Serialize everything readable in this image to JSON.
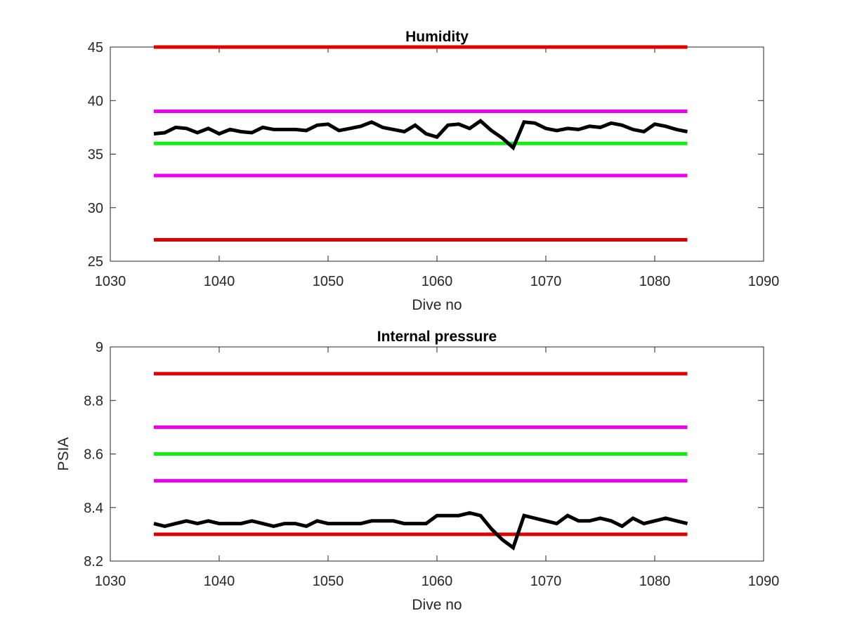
{
  "chart_data": [
    {
      "type": "line",
      "title": "Humidity",
      "xlabel": "Dive no",
      "ylabel": "",
      "xlim": [
        1030,
        1090
      ],
      "ylim": [
        25,
        45
      ],
      "xticks": [
        1030,
        1040,
        1050,
        1060,
        1070,
        1080,
        1090
      ],
      "yticks": [
        25,
        30,
        35,
        40,
        45
      ],
      "grid": false,
      "reference_lines": [
        {
          "y": 45,
          "x_range": [
            1034,
            1083
          ],
          "color": "#dd0000"
        },
        {
          "y": 39,
          "x_range": [
            1034,
            1083
          ],
          "color": "#ee00ee"
        },
        {
          "y": 36,
          "x_range": [
            1034,
            1083
          ],
          "color": "#11ee11"
        },
        {
          "y": 33,
          "x_range": [
            1034,
            1083
          ],
          "color": "#ee00ee"
        },
        {
          "y": 27,
          "x_range": [
            1034,
            1083
          ],
          "color": "#dd0000"
        }
      ],
      "series": [
        {
          "color": "#000000",
          "x": [
            1034,
            1035,
            1036,
            1037,
            1038,
            1039,
            1040,
            1041,
            1042,
            1043,
            1044,
            1045,
            1046,
            1047,
            1048,
            1049,
            1050,
            1051,
            1052,
            1053,
            1054,
            1055,
            1056,
            1057,
            1058,
            1059,
            1060,
            1061,
            1062,
            1063,
            1064,
            1065,
            1066,
            1067,
            1068,
            1069,
            1070,
            1071,
            1072,
            1073,
            1074,
            1075,
            1076,
            1077,
            1078,
            1079,
            1080,
            1081,
            1082,
            1083
          ],
          "y": [
            36.9,
            37.0,
            37.5,
            37.4,
            37.0,
            37.4,
            36.9,
            37.3,
            37.1,
            37.0,
            37.5,
            37.3,
            37.3,
            37.3,
            37.2,
            37.7,
            37.8,
            37.2,
            37.4,
            37.6,
            38.0,
            37.5,
            37.3,
            37.1,
            37.7,
            36.9,
            36.6,
            37.7,
            37.8,
            37.4,
            38.1,
            37.2,
            36.5,
            35.6,
            38.0,
            37.9,
            37.4,
            37.2,
            37.4,
            37.3,
            37.6,
            37.5,
            37.9,
            37.7,
            37.3,
            37.1,
            37.8,
            37.6,
            37.3,
            37.1
          ]
        }
      ]
    },
    {
      "type": "line",
      "title": "Internal pressure",
      "xlabel": "Dive no",
      "ylabel": "PSIA",
      "xlim": [
        1030,
        1090
      ],
      "ylim": [
        8.2,
        9
      ],
      "xticks": [
        1030,
        1040,
        1050,
        1060,
        1070,
        1080,
        1090
      ],
      "yticks": [
        "8.2",
        "8.4",
        "8.6",
        "8.8",
        "9"
      ],
      "grid": false,
      "reference_lines": [
        {
          "y": 8.9,
          "x_range": [
            1034,
            1083
          ],
          "color": "#dd0000"
        },
        {
          "y": 8.7,
          "x_range": [
            1034,
            1083
          ],
          "color": "#ee00ee"
        },
        {
          "y": 8.6,
          "x_range": [
            1034,
            1083
          ],
          "color": "#11ee11"
        },
        {
          "y": 8.5,
          "x_range": [
            1034,
            1083
          ],
          "color": "#ee00ee"
        },
        {
          "y": 8.3,
          "x_range": [
            1034,
            1083
          ],
          "color": "#dd0000"
        }
      ],
      "series": [
        {
          "color": "#000000",
          "x": [
            1034,
            1035,
            1036,
            1037,
            1038,
            1039,
            1040,
            1041,
            1042,
            1043,
            1044,
            1045,
            1046,
            1047,
            1048,
            1049,
            1050,
            1051,
            1052,
            1053,
            1054,
            1055,
            1056,
            1057,
            1058,
            1059,
            1060,
            1061,
            1062,
            1063,
            1064,
            1065,
            1066,
            1067,
            1068,
            1069,
            1070,
            1071,
            1072,
            1073,
            1074,
            1075,
            1076,
            1077,
            1078,
            1079,
            1080,
            1081,
            1082,
            1083
          ],
          "y": [
            8.34,
            8.33,
            8.34,
            8.35,
            8.34,
            8.35,
            8.34,
            8.34,
            8.34,
            8.35,
            8.34,
            8.33,
            8.34,
            8.34,
            8.33,
            8.35,
            8.34,
            8.34,
            8.34,
            8.34,
            8.35,
            8.35,
            8.35,
            8.34,
            8.34,
            8.34,
            8.37,
            8.37,
            8.37,
            8.38,
            8.37,
            8.32,
            8.28,
            8.25,
            8.37,
            8.36,
            8.35,
            8.34,
            8.37,
            8.35,
            8.35,
            8.36,
            8.35,
            8.33,
            8.36,
            8.34,
            8.35,
            8.36,
            8.35,
            8.34
          ]
        }
      ]
    }
  ]
}
